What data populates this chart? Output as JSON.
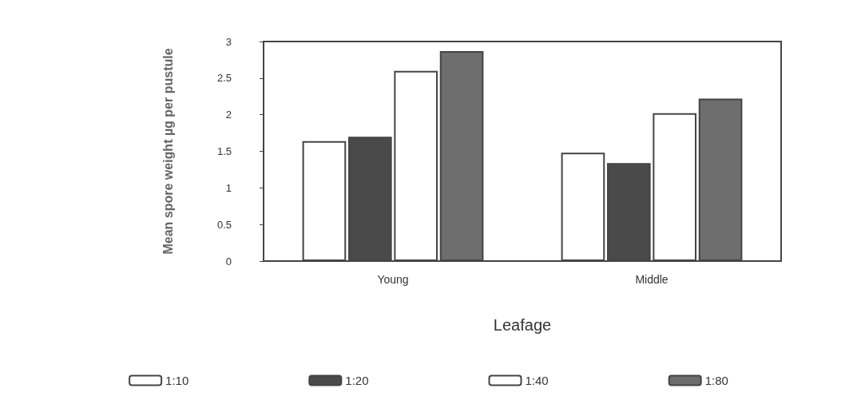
{
  "chart_data": {
    "type": "bar",
    "xlabel": "Leafage",
    "ylabel": "Mean spore weight µg per pustule",
    "categories": [
      "Young",
      "Middle"
    ],
    "series": [
      {
        "name": "1:10",
        "color": "#ffffff",
        "values": [
          1.64,
          1.48
        ]
      },
      {
        "name": "1:20",
        "color": "#4a4a4a",
        "values": [
          1.7,
          1.34
        ]
      },
      {
        "name": "1:40",
        "color": "#ffffff",
        "values": [
          2.6,
          2.02
        ]
      },
      {
        "name": "1:80",
        "color": "#6e6e6e",
        "values": [
          2.87,
          2.22
        ]
      }
    ],
    "ylim": [
      0,
      3
    ],
    "yticks": [
      0,
      0.5,
      1,
      1.5,
      2,
      2.5,
      3
    ],
    "grid": false,
    "legend": "bottom"
  }
}
